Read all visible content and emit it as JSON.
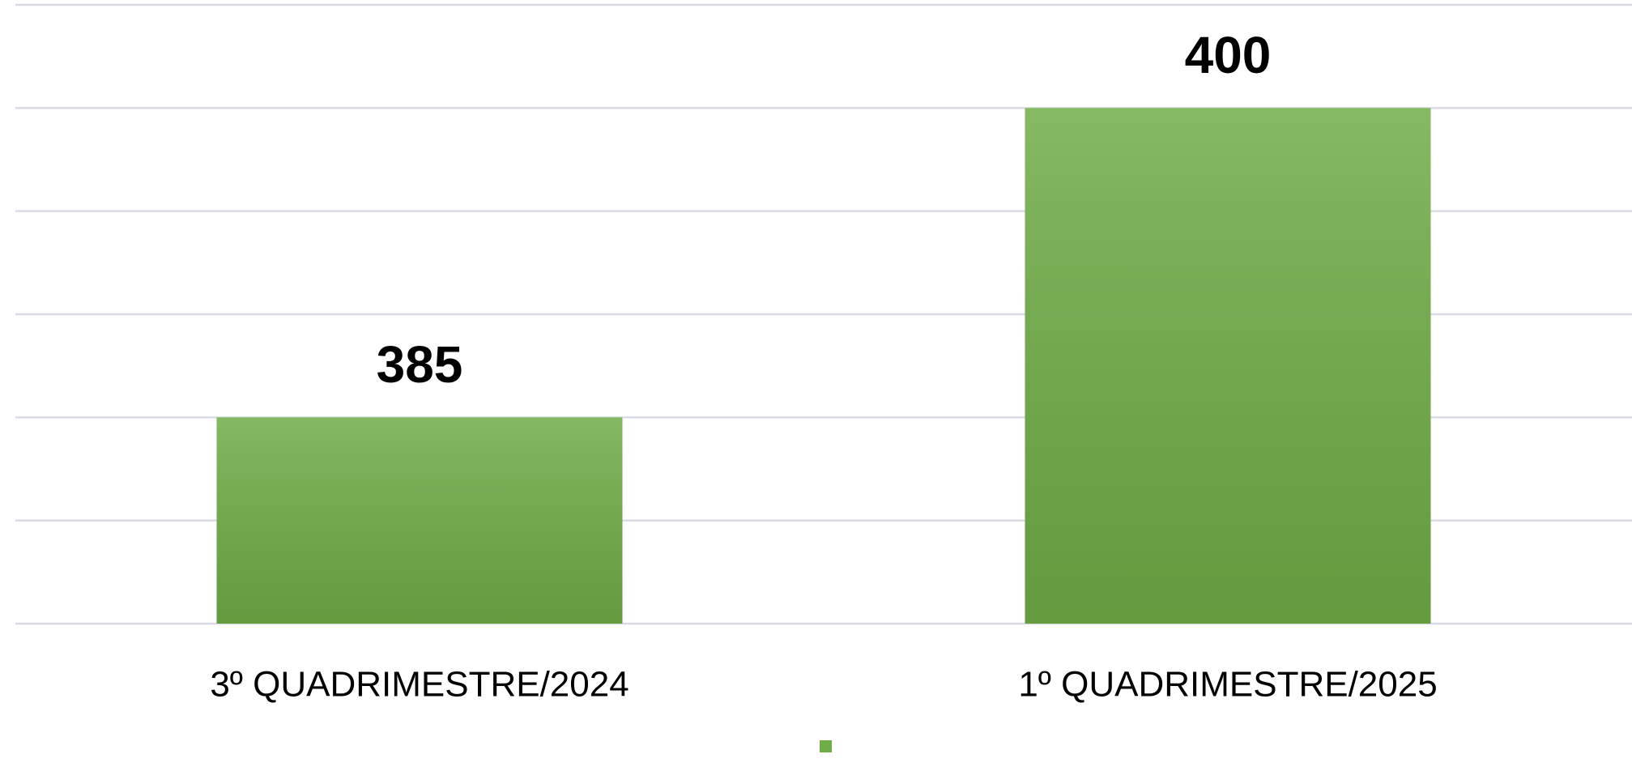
{
  "chart_data": {
    "type": "bar",
    "categories": [
      "3º QUADRIMESTRE/2024",
      "1º QUADRIMESTRE/2025"
    ],
    "values": [
      385,
      400
    ],
    "color": "#70ad47",
    "ylim": [
      375,
      405
    ],
    "yticks": [
      375,
      380,
      385,
      390,
      395,
      400,
      405
    ],
    "grid": true
  }
}
